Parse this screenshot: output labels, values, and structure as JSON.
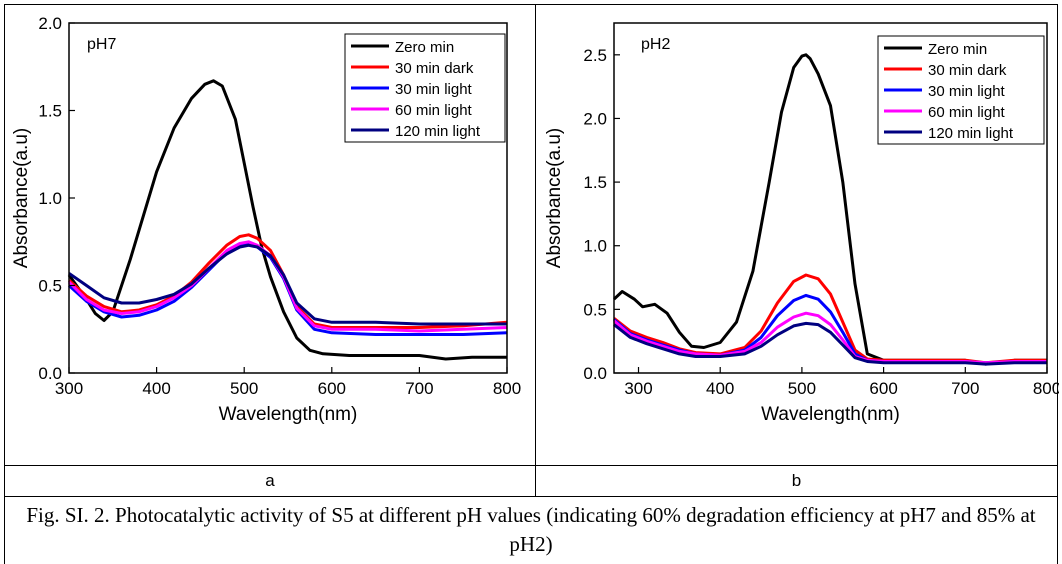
{
  "panels": [
    {
      "sublabel": "a",
      "chart_data": {
        "type": "line",
        "annotation": "pH7",
        "xlabel": "Wavelength(nm)",
        "ylabel": "Absorbance(a.u)",
        "xlim": [
          300,
          800
        ],
        "ylim": [
          0,
          2.0
        ],
        "xticks": [
          300,
          400,
          500,
          600,
          700,
          800
        ],
        "yticks": [
          0.0,
          0.5,
          1.0,
          1.5,
          2.0
        ],
        "ytick_labels": [
          "0.0",
          "0.5",
          "1.0",
          "1.5",
          "2.0"
        ],
        "legend_position": "top-right",
        "series": [
          {
            "name": "Zero min",
            "color": "#000000",
            "x": [
              300,
              320,
              330,
              340,
              350,
              370,
              400,
              420,
              440,
              455,
              465,
              475,
              490,
              500,
              510,
              520,
              530,
              545,
              560,
              575,
              590,
              620,
              700,
              730,
              760,
              800
            ],
            "y": [
              0.56,
              0.42,
              0.34,
              0.3,
              0.35,
              0.65,
              1.15,
              1.4,
              1.57,
              1.65,
              1.67,
              1.64,
              1.45,
              1.2,
              0.95,
              0.72,
              0.55,
              0.35,
              0.2,
              0.13,
              0.11,
              0.1,
              0.1,
              0.08,
              0.09,
              0.09
            ]
          },
          {
            "name": "30 min dark",
            "color": "#ff0000",
            "x": [
              300,
              320,
              340,
              360,
              380,
              400,
              420,
              440,
              460,
              480,
              495,
              505,
              515,
              530,
              545,
              560,
              580,
              600,
              650,
              700,
              750,
              800
            ],
            "y": [
              0.53,
              0.44,
              0.38,
              0.35,
              0.36,
              0.39,
              0.44,
              0.52,
              0.63,
              0.73,
              0.78,
              0.79,
              0.77,
              0.7,
              0.56,
              0.38,
              0.28,
              0.26,
              0.26,
              0.26,
              0.27,
              0.29
            ]
          },
          {
            "name": "30 min light",
            "color": "#0000ff",
            "x": [
              300,
              320,
              340,
              360,
              380,
              400,
              420,
              440,
              460,
              480,
              495,
              505,
              515,
              530,
              545,
              560,
              580,
              600,
              650,
              700,
              750,
              800
            ],
            "y": [
              0.5,
              0.41,
              0.35,
              0.32,
              0.33,
              0.36,
              0.41,
              0.49,
              0.59,
              0.69,
              0.73,
              0.74,
              0.72,
              0.66,
              0.54,
              0.36,
              0.25,
              0.23,
              0.22,
              0.22,
              0.22,
              0.23
            ]
          },
          {
            "name": "60 min light",
            "color": "#ff00ff",
            "x": [
              300,
              320,
              340,
              360,
              380,
              400,
              420,
              440,
              460,
              480,
              495,
              505,
              515,
              530,
              545,
              560,
              580,
              600,
              650,
              700,
              750,
              800
            ],
            "y": [
              0.52,
              0.42,
              0.36,
              0.34,
              0.35,
              0.38,
              0.43,
              0.5,
              0.6,
              0.7,
              0.74,
              0.75,
              0.73,
              0.67,
              0.55,
              0.37,
              0.27,
              0.25,
              0.25,
              0.24,
              0.25,
              0.26
            ]
          },
          {
            "name": "120 min light",
            "color": "#000080",
            "x": [
              300,
              320,
              340,
              360,
              380,
              400,
              420,
              440,
              460,
              480,
              495,
              505,
              515,
              530,
              545,
              560,
              580,
              600,
              650,
              700,
              750,
              800
            ],
            "y": [
              0.57,
              0.5,
              0.43,
              0.4,
              0.4,
              0.42,
              0.45,
              0.51,
              0.6,
              0.68,
              0.72,
              0.73,
              0.72,
              0.67,
              0.56,
              0.4,
              0.31,
              0.29,
              0.29,
              0.28,
              0.28,
              0.28
            ]
          }
        ]
      }
    },
    {
      "sublabel": "b",
      "chart_data": {
        "type": "line",
        "annotation": "pH2",
        "xlabel": "Wavelength(nm)",
        "ylabel": "Absorbance(a.u)",
        "xlim": [
          270,
          800
        ],
        "ylim": [
          0,
          2.75
        ],
        "xticks": [
          300,
          400,
          500,
          600,
          700,
          800
        ],
        "yticks": [
          0.0,
          0.5,
          1.0,
          1.5,
          2.0,
          2.5
        ],
        "ytick_labels": [
          "0.0",
          "0.5",
          "1.0",
          "1.5",
          "2.0",
          "2.5"
        ],
        "legend_position": "top-right",
        "series": [
          {
            "name": "Zero min",
            "color": "#000000",
            "x": [
              270,
              280,
              295,
              305,
              320,
              335,
              350,
              365,
              380,
              400,
              420,
              440,
              460,
              475,
              490,
              500,
              505,
              510,
              520,
              535,
              550,
              565,
              580,
              600,
              650,
              700,
              725,
              760,
              800
            ],
            "y": [
              0.58,
              0.64,
              0.58,
              0.52,
              0.54,
              0.47,
              0.32,
              0.21,
              0.2,
              0.24,
              0.4,
              0.8,
              1.5,
              2.05,
              2.4,
              2.49,
              2.5,
              2.47,
              2.35,
              2.1,
              1.5,
              0.7,
              0.15,
              0.1,
              0.1,
              0.1,
              0.07,
              0.1,
              0.1
            ]
          },
          {
            "name": "30 min dark",
            "color": "#ff0000",
            "x": [
              270,
              290,
              310,
              330,
              350,
              370,
              400,
              430,
              450,
              470,
              490,
              505,
              520,
              535,
              550,
              565,
              580,
              600,
              650,
              700,
              725,
              760,
              800
            ],
            "y": [
              0.43,
              0.33,
              0.28,
              0.24,
              0.19,
              0.16,
              0.15,
              0.2,
              0.33,
              0.55,
              0.72,
              0.77,
              0.74,
              0.62,
              0.4,
              0.18,
              0.11,
              0.1,
              0.1,
              0.1,
              0.08,
              0.1,
              0.1
            ]
          },
          {
            "name": "30 min light",
            "color": "#0000ff",
            "x": [
              270,
              290,
              310,
              330,
              350,
              370,
              400,
              430,
              450,
              470,
              490,
              505,
              520,
              535,
              550,
              565,
              580,
              600,
              650,
              700,
              725,
              760,
              800
            ],
            "y": [
              0.42,
              0.31,
              0.26,
              0.22,
              0.18,
              0.15,
              0.14,
              0.18,
              0.28,
              0.45,
              0.57,
              0.61,
              0.58,
              0.48,
              0.32,
              0.15,
              0.1,
              0.09,
              0.09,
              0.09,
              0.08,
              0.09,
              0.09
            ]
          },
          {
            "name": "60 min light",
            "color": "#ff00ff",
            "x": [
              270,
              290,
              310,
              330,
              350,
              370,
              400,
              430,
              450,
              470,
              490,
              505,
              520,
              535,
              550,
              565,
              580,
              600,
              650,
              700,
              725,
              760,
              800
            ],
            "y": [
              0.41,
              0.3,
              0.25,
              0.21,
              0.17,
              0.15,
              0.14,
              0.17,
              0.24,
              0.36,
              0.44,
              0.47,
              0.45,
              0.38,
              0.26,
              0.13,
              0.1,
              0.09,
              0.09,
              0.09,
              0.08,
              0.09,
              0.09
            ]
          },
          {
            "name": "120 min light",
            "color": "#000080",
            "x": [
              270,
              290,
              310,
              330,
              350,
              370,
              400,
              430,
              450,
              470,
              490,
              505,
              520,
              535,
              550,
              565,
              580,
              600,
              650,
              700,
              725,
              760,
              800
            ],
            "y": [
              0.38,
              0.28,
              0.23,
              0.19,
              0.15,
              0.13,
              0.13,
              0.15,
              0.21,
              0.3,
              0.37,
              0.39,
              0.38,
              0.32,
              0.22,
              0.12,
              0.09,
              0.08,
              0.08,
              0.08,
              0.07,
              0.08,
              0.08
            ]
          }
        ]
      }
    }
  ],
  "caption": "Fig. SI. 2. Photocatalytic activity of S5 at different pH values (indicating 60% degradation efficiency at pH7 and 85% at pH2)"
}
